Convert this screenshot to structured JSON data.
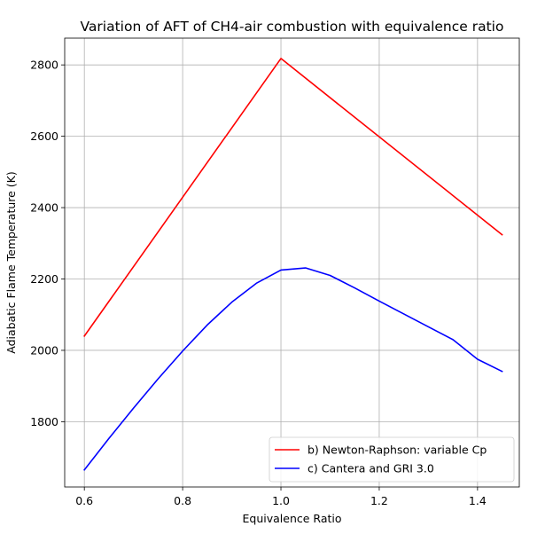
{
  "chart_data": {
    "type": "line",
    "title": "Variation of AFT of CH4-air combustion with equivalence ratio",
    "xlabel": "Equivalence Ratio",
    "ylabel": "Adiabatic Flame Temperature (K)",
    "xlim": [
      0.56,
      1.485
    ],
    "ylim": [
      1617,
      2875
    ],
    "x_ticks": [
      0.6,
      0.8,
      1.0,
      1.2,
      1.4
    ],
    "x_tick_labels": [
      "0.6",
      "0.8",
      "1.0",
      "1.2",
      "1.4"
    ],
    "y_ticks": [
      1800,
      2000,
      2200,
      2400,
      2600,
      2800
    ],
    "y_tick_labels": [
      "1800",
      "2000",
      "2200",
      "2400",
      "2600",
      "2800"
    ],
    "grid": true,
    "legend_position": "lower-right",
    "series": [
      {
        "name": "b) Newton-Raphson: variable Cp",
        "color": "#ff0000",
        "x": [
          0.6,
          1.0,
          1.45
        ],
        "y": [
          2040,
          2818,
          2324
        ]
      },
      {
        "name": "c) Cantera and GRI 3.0",
        "color": "#0000ff",
        "x": [
          0.6,
          0.65,
          0.7,
          0.75,
          0.8,
          0.85,
          0.9,
          0.95,
          1.0,
          1.05,
          1.1,
          1.15,
          1.2,
          1.25,
          1.3,
          1.35,
          1.4,
          1.45
        ],
        "y": [
          1665,
          1753,
          1838,
          1920,
          1998,
          2071,
          2135,
          2188,
          2225,
          2231,
          2210,
          2175,
          2138,
          2102,
          2066,
          2030,
          1975,
          1941
        ]
      }
    ]
  }
}
